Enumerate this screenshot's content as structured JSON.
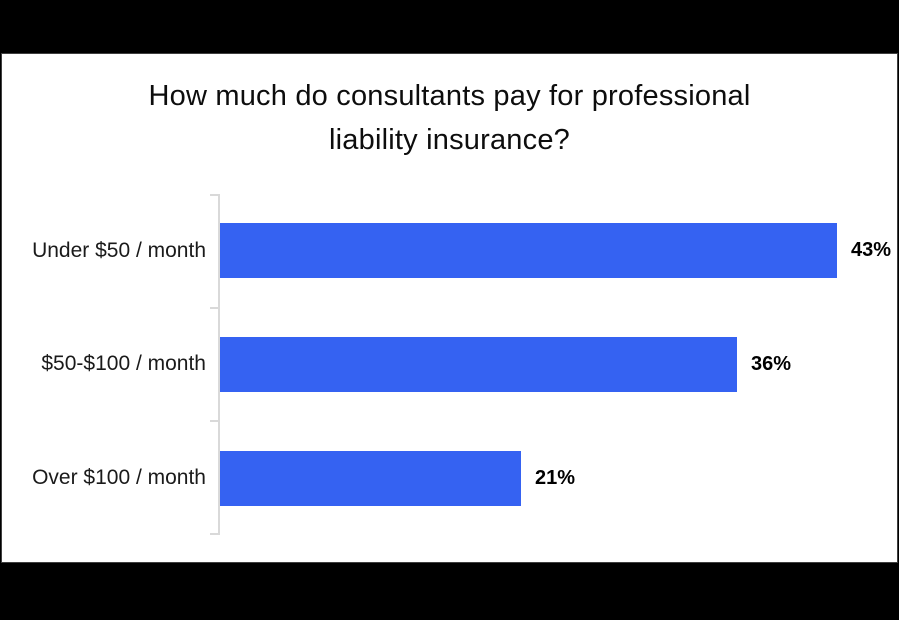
{
  "window": {
    "background_color": "#000000",
    "panel_background": "#FFFFFF",
    "panel_border_color": "#3F3F3F"
  },
  "title": {
    "full": "How much do consultants pay for professional liability insurance?",
    "lines": [
      "How much do consultants pay for professional",
      "liability insurance?"
    ]
  },
  "chart_data": {
    "type": "bar",
    "orientation": "horizontal",
    "title": "How much do consultants pay for professional liability insurance?",
    "categories": [
      "Under $50 / month",
      "$50-$100 / month",
      "Over $100 / month"
    ],
    "values": [
      43,
      36,
      21
    ],
    "value_labels": [
      "43%",
      "36%",
      "21%"
    ],
    "xlabel": "",
    "ylabel": "",
    "xlim": [
      0,
      45
    ],
    "grid": false,
    "legend": false,
    "bar_color": "#3562F2",
    "axis_color": "#D9D9D9",
    "category_label_color": "#1A1A1A",
    "value_label_color": "#000000",
    "title_color": "#0D0D0D"
  }
}
